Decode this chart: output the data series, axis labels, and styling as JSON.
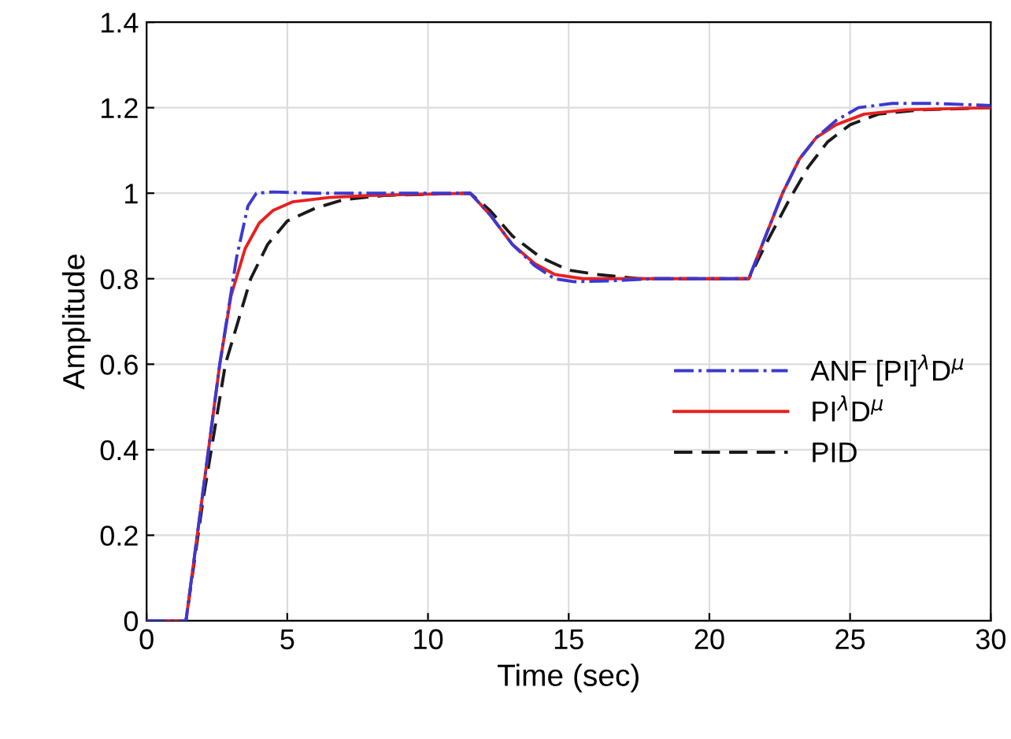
{
  "chart_data": {
    "type": "line",
    "xlabel": "Time (sec)",
    "ylabel": "Amplitude",
    "xlim": [
      0,
      30
    ],
    "xticks": [
      0,
      5,
      10,
      15,
      20,
      25,
      30
    ],
    "ylim": [
      0,
      1.4
    ],
    "yticks": [
      0,
      0.2,
      0.4,
      0.6,
      0.8,
      1,
      1.2,
      1.4
    ],
    "grid": true,
    "legend": "right",
    "series": [
      {
        "name": "ANF [PI]$^{λ}$D$^{μ}$",
        "color": "#3a3ad0",
        "line_style": "dashdot",
        "x": [
          0,
          1.4,
          2.0,
          2.6,
          3.2,
          3.6,
          3.9,
          4.5,
          6,
          11.5,
          12.2,
          13,
          13.8,
          14.5,
          15.2,
          16.5,
          18,
          21.4,
          22,
          22.6,
          23.2,
          23.8,
          24.5,
          25.3,
          26.5,
          28,
          30
        ],
        "values": [
          0,
          0,
          0.3,
          0.6,
          0.85,
          0.97,
          1.0,
          1.003,
          1.0,
          1.0,
          0.95,
          0.88,
          0.83,
          0.8,
          0.793,
          0.795,
          0.8,
          0.8,
          0.9,
          1.0,
          1.08,
          1.13,
          1.17,
          1.2,
          1.21,
          1.21,
          1.205
        ]
      },
      {
        "name": "PI$^{λ}$D$^{μ}$",
        "color": "#e8201f",
        "line_style": "solid",
        "x": [
          0,
          1.4,
          2.0,
          2.6,
          3.0,
          3.5,
          4.0,
          4.5,
          5.2,
          6.5,
          8,
          11.5,
          12.2,
          13,
          13.8,
          14.5,
          15.5,
          17,
          21.4,
          22,
          22.6,
          23.2,
          23.8,
          24.5,
          25.5,
          27,
          30
        ],
        "values": [
          0,
          0,
          0.3,
          0.6,
          0.76,
          0.87,
          0.93,
          0.96,
          0.98,
          0.99,
          0.995,
          1.0,
          0.95,
          0.88,
          0.835,
          0.81,
          0.8,
          0.8,
          0.8,
          0.9,
          1.0,
          1.08,
          1.13,
          1.16,
          1.185,
          1.195,
          1.2
        ]
      },
      {
        "name": "PID",
        "color": "#1a1a1a",
        "line_style": "dashed",
        "x": [
          0,
          1.4,
          2.0,
          2.8,
          3.7,
          4.3,
          5.0,
          6.0,
          7.0,
          8.5,
          11.5,
          12.2,
          13,
          14,
          15,
          16,
          17.5,
          21.4,
          22,
          22.8,
          23.5,
          24.2,
          25,
          26,
          27.5,
          30
        ],
        "values": [
          0,
          0,
          0.28,
          0.6,
          0.8,
          0.88,
          0.935,
          0.965,
          0.985,
          0.995,
          1.0,
          0.96,
          0.9,
          0.85,
          0.82,
          0.81,
          0.8,
          0.8,
          0.88,
          0.98,
          1.06,
          1.12,
          1.16,
          1.185,
          1.195,
          1.2
        ]
      }
    ]
  }
}
